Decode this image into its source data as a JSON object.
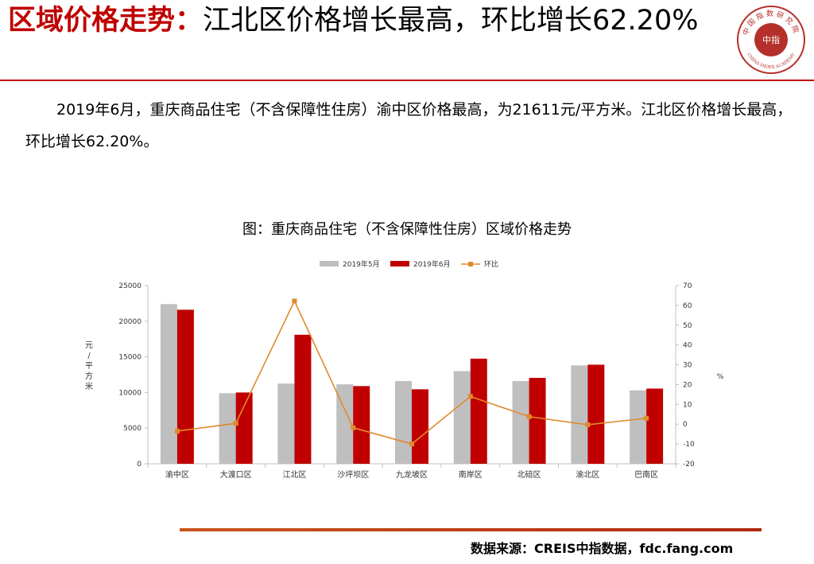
{
  "title": {
    "highlight": "区域价格走势：",
    "rest": "江北区价格增长最高，环比增长62.20%"
  },
  "logo": {
    "text_top": "中国指数研究院",
    "text_bottom": "CHINA INDEX ACADEMY",
    "center": "中指"
  },
  "body_text": "2019年6月，重庆商品住宅（不含保障性住房）渝中区价格最高，为21611元/平方米。江北区价格增长最高，环比增长62.20%。",
  "source": "数据来源：CREIS中指数据，fdc.fang.com",
  "colors": {
    "accent": "#c00000",
    "may": "#bfbfbf",
    "jun": "#c00000",
    "mom": "#e08a2e"
  },
  "chart_data": {
    "type": "bar",
    "title": "图：重庆商品住宅（不含保障性住房）区域价格走势",
    "ylabel": "元/平方米",
    "y2label": "%",
    "categories": [
      "渝中区",
      "大渡口区",
      "江北区",
      "沙坪坝区",
      "九龙坡区",
      "南岸区",
      "北碚区",
      "渝北区",
      "巴南区"
    ],
    "ylim": [
      0,
      25000
    ],
    "yticks": [
      0,
      5000,
      10000,
      15000,
      20000,
      25000
    ],
    "y2lim": [
      -20,
      70
    ],
    "y2ticks": [
      -20,
      -10,
      0,
      10,
      20,
      30,
      40,
      50,
      60,
      70
    ],
    "legend_position": "top",
    "series": [
      {
        "name": "2019年5月",
        "type": "bar",
        "axis": "left",
        "values": [
          22400,
          9900,
          11250,
          11150,
          11600,
          13000,
          11600,
          13800,
          10300
        ]
      },
      {
        "name": "2019年6月",
        "type": "bar",
        "axis": "left",
        "values": [
          21611,
          10000,
          18100,
          10900,
          10450,
          14750,
          12050,
          13900,
          10550
        ]
      },
      {
        "name": "环比",
        "type": "line",
        "axis": "right",
        "values": [
          -3.5,
          0.4,
          62.2,
          -1.8,
          -10.0,
          14.0,
          3.8,
          -0.3,
          3.0
        ]
      }
    ]
  }
}
